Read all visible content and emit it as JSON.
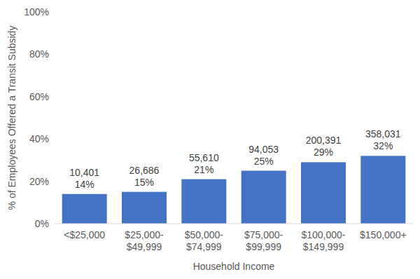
{
  "chart_data": {
    "type": "bar",
    "y_label": "% of Employees Offered a Transit Subsidy",
    "x_label": "Household Income",
    "categories": [
      "<$25,000",
      "$25,000-$49,999",
      "$50,000-$74,999",
      "$75,000-$99,999",
      "$100,000-$149,999",
      "$150,000+"
    ],
    "values": [
      14,
      15,
      21,
      25,
      29,
      32
    ],
    "value_labels": [
      "14%",
      "15%",
      "21%",
      "25%",
      "29%",
      "32%"
    ],
    "count_labels": [
      "10,401",
      "26,686",
      "55,610",
      "94,053",
      "200,391",
      "358,031"
    ],
    "color": "#4472c4",
    "ylim": [
      0,
      100
    ],
    "yticks": [
      {
        "value": 0,
        "label": "0%"
      },
      {
        "value": 20,
        "label": "20%"
      },
      {
        "value": 40,
        "label": "40%"
      },
      {
        "value": 60,
        "label": "60%"
      },
      {
        "value": 80,
        "label": "80%"
      },
      {
        "value": 100,
        "label": "100%"
      }
    ],
    "grid": false,
    "data_labels": true
  }
}
